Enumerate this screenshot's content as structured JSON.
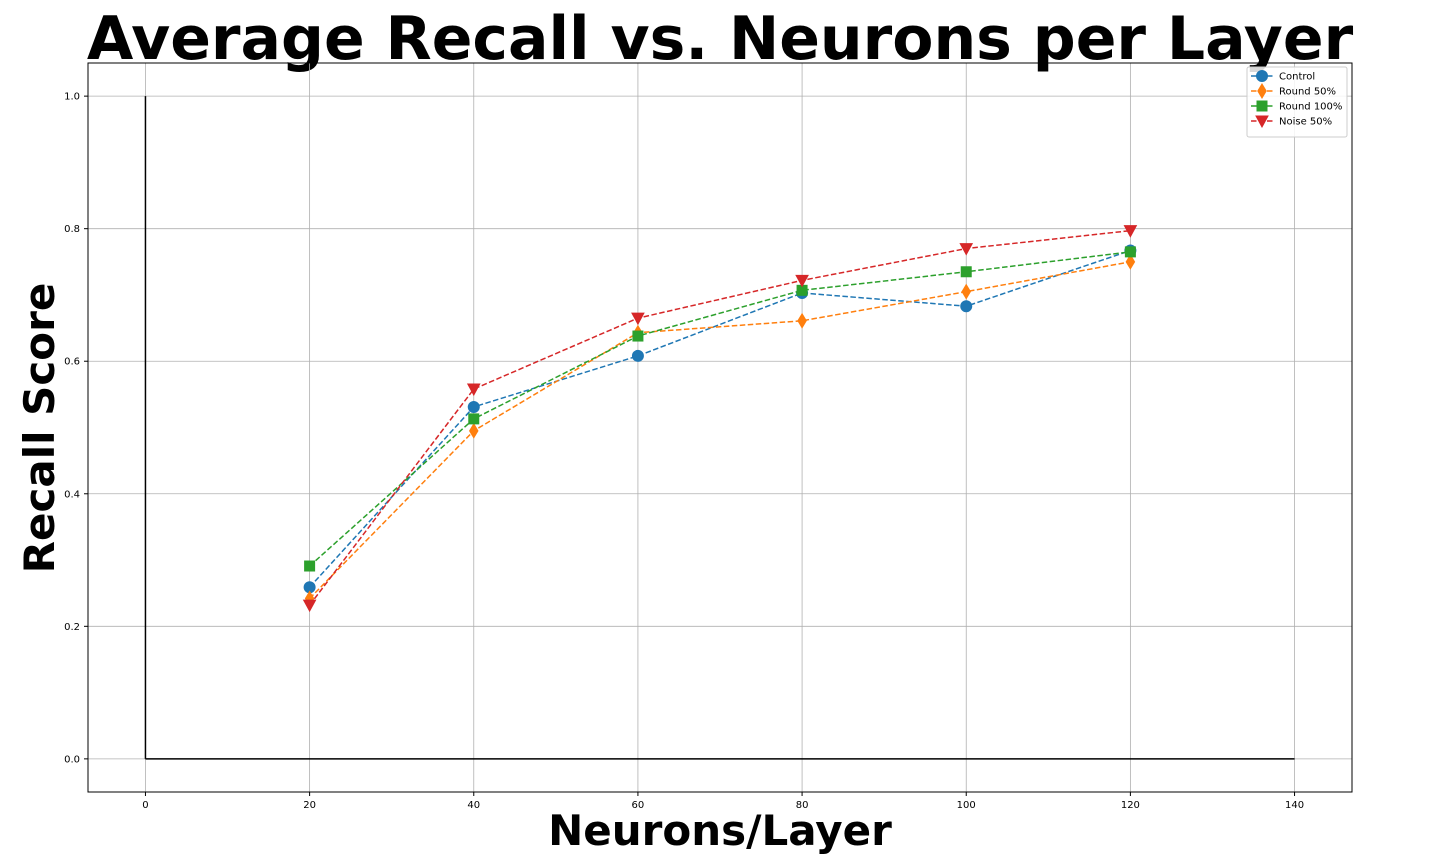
{
  "chart_data": {
    "type": "line",
    "title": "Average Recall vs. Neurons per Layer",
    "xlabel": "Neurons/Layer",
    "ylabel": "Recall Score",
    "xlim": [
      -7,
      147
    ],
    "ylim": [
      -0.05,
      1.05
    ],
    "xticks": [
      "0",
      "20",
      "40",
      "60",
      "80",
      "100",
      "120",
      "140"
    ],
    "yticks": [
      "0.0",
      "0.2",
      "0.4",
      "0.6",
      "0.8",
      "1.0"
    ],
    "grid": true,
    "legend_position": "top-right",
    "x": [
      20,
      40,
      60,
      80,
      100,
      120
    ],
    "reference_lines": [
      {
        "x": [
          0,
          0
        ],
        "y": [
          0,
          1
        ]
      },
      {
        "x": [
          0,
          140
        ],
        "y": [
          0,
          0
        ]
      }
    ],
    "series": [
      {
        "name": "Control",
        "color": "#1f77b4",
        "marker": "circle",
        "values": [
          0.259,
          0.531,
          0.608,
          0.703,
          0.683,
          0.767
        ]
      },
      {
        "name": "Round 50%",
        "color": "#ff7f0e",
        "marker": "thin-diamond",
        "values": [
          0.242,
          0.495,
          0.643,
          0.661,
          0.705,
          0.75
        ]
      },
      {
        "name": "Round 100%",
        "color": "#2ca02c",
        "marker": "square",
        "values": [
          0.291,
          0.513,
          0.638,
          0.707,
          0.735,
          0.765
        ]
      },
      {
        "name": "Noise 50%",
        "color": "#d62728",
        "marker": "triangle-down",
        "values": [
          0.232,
          0.558,
          0.665,
          0.722,
          0.77,
          0.797
        ]
      }
    ]
  }
}
